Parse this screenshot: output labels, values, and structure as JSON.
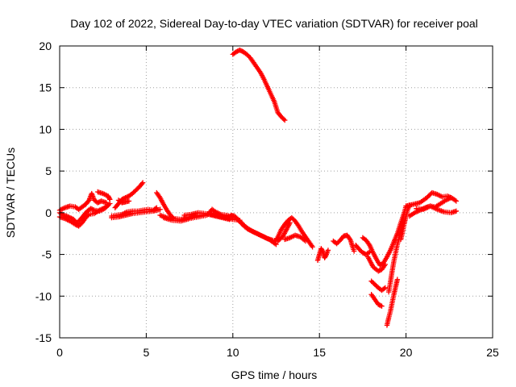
{
  "chart_data": {
    "type": "scatter",
    "title": "Day 102 of 2022, Sidereal Day-to-day VTEC variation (SDTVAR) for receiver poal",
    "xlabel": "GPS time / hours",
    "ylabel": "SDTVAR / TECUs",
    "xlim": [
      0,
      25
    ],
    "ylim": [
      -15,
      20
    ],
    "xticks": [
      0,
      5,
      10,
      15,
      20,
      25
    ],
    "yticks": [
      -15,
      -10,
      -5,
      0,
      5,
      10,
      15,
      20
    ],
    "grid": true,
    "marker": "+",
    "series": [
      {
        "name": "SDTVAR",
        "color": "#ff0000",
        "segments": [
          [
            [
              0.0,
              0.3
            ],
            [
              0.3,
              0.6
            ],
            [
              0.6,
              0.8
            ],
            [
              0.9,
              0.7
            ],
            [
              1.1,
              0.4
            ],
            [
              1.3,
              0.7
            ],
            [
              1.5,
              1.0
            ],
            [
              1.7,
              1.5
            ],
            [
              1.85,
              2.3
            ],
            [
              2.0,
              1.5
            ],
            [
              2.2,
              1.2
            ],
            [
              2.4,
              1.4
            ],
            [
              2.7,
              1.2
            ]
          ],
          [
            [
              0.0,
              0.0
            ],
            [
              0.2,
              -0.3
            ],
            [
              0.4,
              -0.4
            ],
            [
              0.6,
              -0.6
            ],
            [
              0.8,
              -0.8
            ],
            [
              1.0,
              -1.2
            ],
            [
              1.2,
              -0.8
            ],
            [
              1.4,
              -0.3
            ],
            [
              1.6,
              0.2
            ],
            [
              1.8,
              0.5
            ],
            [
              2.0,
              0.3
            ],
            [
              2.3,
              0.2
            ],
            [
              2.6,
              0.5
            ],
            [
              2.8,
              0.9
            ]
          ],
          [
            [
              0.0,
              -0.5
            ],
            [
              0.3,
              -0.7
            ],
            [
              0.6,
              -1.0
            ],
            [
              0.9,
              -1.4
            ],
            [
              1.1,
              -1.6
            ],
            [
              1.3,
              -1.2
            ],
            [
              1.5,
              -0.6
            ],
            [
              1.7,
              -0.2
            ],
            [
              2.0,
              -0.1
            ],
            [
              2.3,
              0.3
            ],
            [
              2.6,
              0.6
            ],
            [
              2.9,
              1.1
            ]
          ],
          [
            [
              2.2,
              2.5
            ],
            [
              2.5,
              2.3
            ],
            [
              2.8,
              2.0
            ],
            [
              2.9,
              1.6
            ]
          ],
          [
            [
              3.0,
              -0.4
            ],
            [
              3.3,
              -0.3
            ],
            [
              3.6,
              -0.2
            ],
            [
              3.9,
              0.1
            ],
            [
              4.2,
              0.2
            ],
            [
              4.5,
              0.2
            ],
            [
              4.8,
              0.3
            ],
            [
              5.1,
              0.4
            ],
            [
              5.4,
              0.3
            ],
            [
              5.6,
              0.6
            ]
          ],
          [
            [
              3.0,
              -0.6
            ],
            [
              3.4,
              -0.5
            ],
            [
              3.8,
              -0.3
            ],
            [
              4.2,
              -0.1
            ],
            [
              4.6,
              0.0
            ],
            [
              5.0,
              0.1
            ],
            [
              5.4,
              0.2
            ],
            [
              5.8,
              0.4
            ]
          ],
          [
            [
              3.2,
              0.6
            ],
            [
              3.4,
              1.1
            ],
            [
              3.6,
              1.6
            ],
            [
              3.8,
              1.8
            ],
            [
              4.0,
              2.0
            ],
            [
              4.2,
              2.3
            ],
            [
              4.4,
              2.7
            ],
            [
              4.6,
              3.1
            ],
            [
              4.8,
              3.6
            ]
          ],
          [
            [
              3.4,
              1.5
            ],
            [
              3.6,
              1.2
            ],
            [
              3.8,
              1.3
            ],
            [
              4.0,
              1.4
            ]
          ],
          [
            [
              5.6,
              2.4
            ],
            [
              5.8,
              1.8
            ],
            [
              6.0,
              1.0
            ],
            [
              6.2,
              0.3
            ],
            [
              6.4,
              -0.3
            ],
            [
              6.6,
              -0.7
            ]
          ],
          [
            [
              5.8,
              -0.3
            ],
            [
              6.2,
              -0.6
            ],
            [
              6.6,
              -0.7
            ],
            [
              7.0,
              -0.8
            ],
            [
              7.4,
              -0.6
            ],
            [
              7.8,
              -0.4
            ],
            [
              8.2,
              -0.3
            ],
            [
              8.6,
              -0.2
            ],
            [
              9.0,
              -0.4
            ],
            [
              9.4,
              -0.6
            ],
            [
              9.8,
              -0.8
            ]
          ],
          [
            [
              6.0,
              -0.6
            ],
            [
              6.5,
              -0.9
            ],
            [
              7.0,
              -1.0
            ],
            [
              7.5,
              -0.7
            ],
            [
              8.0,
              -0.5
            ],
            [
              8.5,
              -0.3
            ],
            [
              8.8,
              0.4
            ],
            [
              9.0,
              0.1
            ],
            [
              9.3,
              -0.2
            ],
            [
              9.6,
              -0.3
            ],
            [
              10.0,
              -0.5
            ]
          ],
          [
            [
              7.2,
              -0.3
            ],
            [
              7.6,
              -0.2
            ],
            [
              8.0,
              0.0
            ],
            [
              8.4,
              -0.1
            ],
            [
              8.8,
              -0.2
            ],
            [
              9.2,
              -0.4
            ],
            [
              9.6,
              -0.6
            ],
            [
              10.0,
              -0.8
            ],
            [
              10.4,
              -0.9
            ]
          ],
          [
            [
              9.9,
              -0.3
            ],
            [
              10.1,
              -0.4
            ],
            [
              10.3,
              -0.8
            ],
            [
              10.5,
              -1.3
            ],
            [
              10.7,
              -1.7
            ],
            [
              10.9,
              -2.0
            ],
            [
              11.2,
              -2.3
            ],
            [
              11.5,
              -2.6
            ],
            [
              11.8,
              -2.9
            ],
            [
              12.1,
              -3.2
            ],
            [
              12.3,
              -3.5
            ],
            [
              12.5,
              -3.8
            ]
          ],
          [
            [
              10.2,
              -0.7
            ],
            [
              10.5,
              -1.2
            ],
            [
              10.8,
              -1.8
            ],
            [
              11.1,
              -2.2
            ],
            [
              11.4,
              -2.5
            ],
            [
              11.7,
              -2.8
            ],
            [
              12.0,
              -3.1
            ],
            [
              12.3,
              -3.3
            ],
            [
              12.6,
              -3.4
            ],
            [
              12.9,
              -2.8
            ],
            [
              13.1,
              -2.0
            ],
            [
              13.3,
              -1.2
            ]
          ],
          [
            [
              10.0,
              19.0
            ],
            [
              10.2,
              19.3
            ],
            [
              10.4,
              19.5
            ],
            [
              10.6,
              19.3
            ],
            [
              10.8,
              19.0
            ],
            [
              11.0,
              18.6
            ],
            [
              11.2,
              18.0
            ],
            [
              11.4,
              17.4
            ],
            [
              11.6,
              16.8
            ],
            [
              11.8,
              16.0
            ],
            [
              12.0,
              15.1
            ],
            [
              12.2,
              14.2
            ],
            [
              12.4,
              13.3
            ],
            [
              12.6,
              12.0
            ],
            [
              12.8,
              11.5
            ],
            [
              13.0,
              11.1
            ]
          ],
          [
            [
              12.4,
              -3.6
            ],
            [
              12.6,
              -2.9
            ],
            [
              12.8,
              -2.0
            ],
            [
              13.0,
              -1.4
            ],
            [
              13.2,
              -0.9
            ],
            [
              13.4,
              -0.6
            ],
            [
              13.6,
              -1.0
            ],
            [
              13.8,
              -1.6
            ],
            [
              14.0,
              -2.3
            ],
            [
              14.2,
              -2.9
            ],
            [
              14.4,
              -3.5
            ],
            [
              14.6,
              -4.1
            ]
          ],
          [
            [
              13.0,
              -3.2
            ],
            [
              13.3,
              -3.0
            ],
            [
              13.6,
              -2.7
            ],
            [
              13.9,
              -2.9
            ],
            [
              14.2,
              -3.4
            ]
          ],
          [
            [
              14.9,
              -5.7
            ],
            [
              15.0,
              -5.0
            ],
            [
              15.1,
              -4.3
            ],
            [
              15.2,
              -4.7
            ],
            [
              15.3,
              -5.4
            ],
            [
              15.4,
              -5.0
            ],
            [
              15.5,
              -4.5
            ]
          ],
          [
            [
              15.8,
              -3.4
            ],
            [
              16.0,
              -3.7
            ],
            [
              16.2,
              -3.3
            ],
            [
              16.4,
              -2.8
            ],
            [
              16.6,
              -2.7
            ],
            [
              16.8,
              -3.3
            ],
            [
              16.9,
              -4.0
            ],
            [
              17.0,
              -4.6
            ]
          ],
          [
            [
              17.1,
              -3.9
            ],
            [
              17.3,
              -4.4
            ],
            [
              17.5,
              -4.8
            ],
            [
              17.7,
              -5.0
            ],
            [
              17.9,
              -4.7
            ]
          ],
          [
            [
              17.5,
              -3.0
            ],
            [
              17.7,
              -3.3
            ],
            [
              17.9,
              -3.9
            ],
            [
              18.1,
              -4.8
            ],
            [
              18.3,
              -5.6
            ],
            [
              18.5,
              -6.3
            ],
            [
              18.7,
              -6.0
            ],
            [
              18.9,
              -5.3
            ],
            [
              19.1,
              -4.5
            ],
            [
              19.3,
              -3.5
            ],
            [
              19.5,
              -2.5
            ],
            [
              19.7,
              -1.2
            ],
            [
              19.9,
              0.0
            ],
            [
              20.0,
              0.8
            ]
          ],
          [
            [
              17.8,
              -5.3
            ],
            [
              18.1,
              -6.5
            ],
            [
              18.4,
              -7.0
            ],
            [
              18.6,
              -6.8
            ],
            [
              18.8,
              -6.2
            ]
          ],
          [
            [
              18.0,
              -8.2
            ],
            [
              18.2,
              -8.6
            ],
            [
              18.4,
              -9.0
            ],
            [
              18.6,
              -9.3
            ],
            [
              18.8,
              -9.0
            ]
          ],
          [
            [
              18.0,
              -9.8
            ],
            [
              18.2,
              -10.4
            ],
            [
              18.4,
              -11.0
            ],
            [
              18.6,
              -11.2
            ]
          ],
          [
            [
              18.9,
              -13.5
            ],
            [
              19.0,
              -12.6
            ],
            [
              19.1,
              -11.8
            ],
            [
              19.2,
              -10.8
            ],
            [
              19.3,
              -9.8
            ],
            [
              19.4,
              -8.9
            ],
            [
              19.5,
              -8.0
            ]
          ],
          [
            [
              19.0,
              -9.5
            ],
            [
              19.1,
              -8.3
            ],
            [
              19.2,
              -7.0
            ],
            [
              19.3,
              -5.8
            ],
            [
              19.4,
              -4.8
            ],
            [
              19.5,
              -3.8
            ],
            [
              19.6,
              -3.0
            ],
            [
              19.7,
              -2.0
            ],
            [
              19.8,
              -1.0
            ],
            [
              19.9,
              0.0
            ]
          ],
          [
            [
              19.7,
              -3.2
            ],
            [
              19.8,
              -2.3
            ],
            [
              19.9,
              -1.3
            ],
            [
              20.0,
              -0.4
            ],
            [
              20.1,
              0.4
            ],
            [
              20.2,
              0.9
            ]
          ],
          [
            [
              20.0,
              0.8
            ],
            [
              20.4,
              1.0
            ],
            [
              20.8,
              1.2
            ],
            [
              21.2,
              1.8
            ],
            [
              21.5,
              2.4
            ],
            [
              21.8,
              2.2
            ],
            [
              22.1,
              1.9
            ],
            [
              22.4,
              2.0
            ],
            [
              22.7,
              1.7
            ],
            [
              22.9,
              1.4
            ]
          ],
          [
            [
              20.2,
              -0.4
            ],
            [
              20.5,
              0.0
            ],
            [
              20.8,
              0.3
            ],
            [
              21.1,
              0.6
            ],
            [
              21.4,
              0.8
            ],
            [
              21.7,
              0.7
            ],
            [
              22.0,
              1.1
            ],
            [
              22.3,
              1.5
            ],
            [
              22.6,
              1.8
            ]
          ],
          [
            [
              20.6,
              0.5
            ],
            [
              21.0,
              0.4
            ],
            [
              21.4,
              0.8
            ],
            [
              21.8,
              0.4
            ],
            [
              22.2,
              0.1
            ],
            [
              22.6,
              0.0
            ],
            [
              22.9,
              0.2
            ]
          ]
        ]
      }
    ]
  }
}
